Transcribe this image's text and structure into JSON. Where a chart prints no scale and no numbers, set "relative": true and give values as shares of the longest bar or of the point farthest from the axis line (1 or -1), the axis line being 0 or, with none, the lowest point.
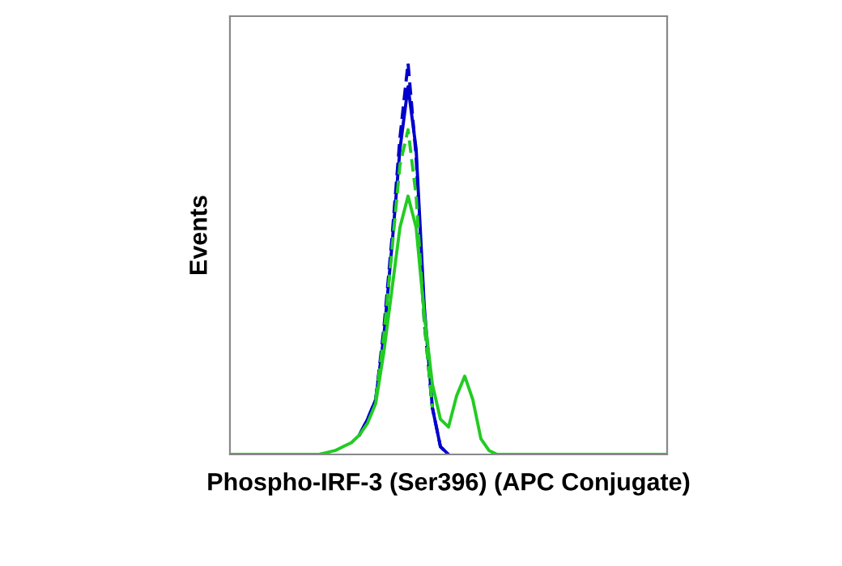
{
  "chart_data": {
    "type": "line",
    "xlabel": "Phospho-IRF-3 (Ser396) (APC Conjugate)",
    "ylabel": "Events",
    "relative": true,
    "tick_labels": false,
    "grid": false,
    "legend": false,
    "categories": [
      null,
      null,
      null,
      null,
      null,
      null,
      null,
      null,
      null,
      null,
      null,
      null,
      null,
      null,
      null,
      null,
      null,
      null,
      null,
      null,
      null,
      null,
      null,
      null,
      null,
      null,
      null,
      null,
      null,
      null,
      null,
      null,
      null,
      null,
      null,
      null,
      null,
      null,
      null,
      null,
      null,
      null,
      null,
      null,
      null,
      null,
      null,
      null,
      null,
      null,
      null,
      null,
      null,
      null,
      null
    ],
    "series": [
      {
        "color": "#0000cc",
        "line_style": "dashed",
        "values": [
          null,
          null,
          null,
          null,
          null,
          null,
          null,
          null,
          null,
          null,
          null,
          null,
          null,
          null,
          null,
          null,
          0.05,
          0.09,
          0.14,
          0.32,
          0.55,
          0.81,
          1,
          0.76,
          0.34,
          0.12,
          0.02,
          0,
          null,
          null,
          null,
          null,
          null,
          null,
          null,
          null,
          null,
          null,
          null,
          null,
          null,
          null,
          null,
          null,
          null,
          null,
          null,
          null,
          null,
          null,
          null,
          null,
          null,
          null,
          null
        ]
      },
      {
        "color": "#0000cc",
        "line_style": "solid",
        "values": [
          null,
          null,
          null,
          null,
          null,
          null,
          null,
          null,
          null,
          null,
          null,
          null,
          null,
          null,
          null,
          null,
          0.05,
          0.09,
          0.14,
          0.3,
          0.53,
          0.78,
          0.94,
          0.78,
          0.38,
          0.12,
          0.02,
          0,
          null,
          null,
          null,
          null,
          null,
          null,
          null,
          null,
          null,
          null,
          null,
          null,
          null,
          null,
          null,
          null,
          null,
          null,
          null,
          null,
          null,
          null,
          null,
          null,
          null,
          null,
          null
        ]
      },
      {
        "color": "#22cc22",
        "line_style": "dashed",
        "values": [
          null,
          null,
          null,
          null,
          null,
          null,
          null,
          null,
          null,
          null,
          null,
          null,
          null,
          null,
          null,
          null,
          null,
          null,
          0.14,
          0.3,
          0.52,
          0.74,
          0.83,
          0.66,
          0.34,
          0.12,
          null,
          null,
          null,
          null,
          null,
          null,
          null,
          null,
          null,
          null,
          null,
          null,
          null,
          null,
          null,
          null,
          null,
          null,
          null,
          null,
          null,
          null,
          null,
          null,
          null,
          null,
          null,
          null,
          null
        ]
      },
      {
        "color": "#22cc22",
        "line_style": "solid",
        "values": [
          0,
          0,
          0,
          0,
          0,
          0,
          0,
          0,
          0,
          0,
          0,
          0,
          0.005,
          0.01,
          0.02,
          0.03,
          0.05,
          0.08,
          0.13,
          0.26,
          0.42,
          0.58,
          0.66,
          0.58,
          0.36,
          0.18,
          0.09,
          0.07,
          0.15,
          0.2,
          0.14,
          0.04,
          0.01,
          0,
          0,
          0,
          0,
          0,
          0,
          0,
          0,
          0,
          0,
          0,
          0,
          0,
          0,
          0,
          0,
          0,
          0,
          0,
          0,
          0,
          0
        ]
      }
    ]
  }
}
